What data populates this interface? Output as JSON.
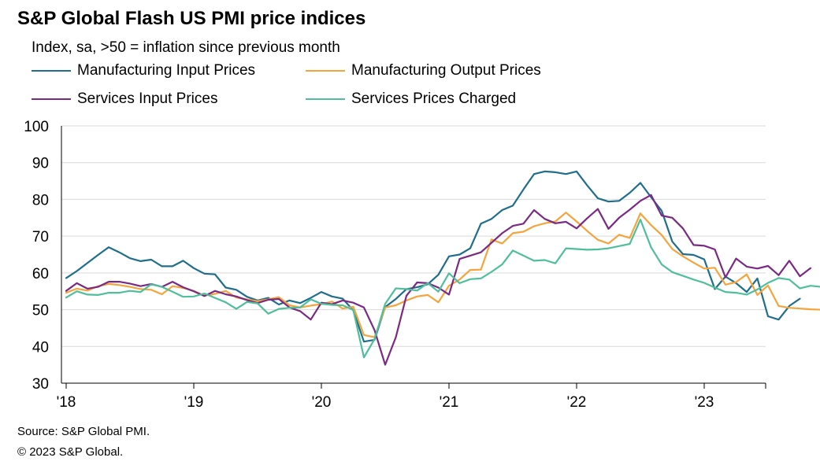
{
  "title": "S&P Global Flash US PMI price indices",
  "subtitle": "Index, sa, >50 = inflation since previous month",
  "source": "Source: S&P Global PMI.",
  "copyright": "© 2023 S&P Global.",
  "chart_data": {
    "type": "line",
    "title": "S&P Global Flash US PMI price indices",
    "ylabel": "Index, sa, >50 = inflation since previous month",
    "ylim": [
      30,
      100
    ],
    "yticks": [
      30,
      40,
      50,
      60,
      70,
      80,
      90,
      100
    ],
    "xticks": [
      {
        "label": "'18",
        "index": 0
      },
      {
        "label": "'19",
        "index": 12
      },
      {
        "label": "'20",
        "index": 24
      },
      {
        "label": "'21",
        "index": 36
      },
      {
        "label": "'22",
        "index": 48
      },
      {
        "label": "'23",
        "index": 60
      }
    ],
    "legend_position": "top",
    "grid": true,
    "series": [
      {
        "name": "Manufacturing Input Prices",
        "color": "#1f6e8c",
        "values": [
          58.6,
          60.5,
          62.7,
          64.9,
          67.0,
          65.6,
          64.0,
          63.2,
          63.6,
          61.8,
          61.8,
          63.3,
          61.3,
          59.8,
          59.6,
          56.0,
          55.4,
          53.5,
          52.5,
          53.2,
          51.4,
          52.5,
          51.8,
          53.2,
          54.8,
          53.6,
          53.0,
          49.8,
          41.3,
          41.8,
          50.7,
          52.9,
          55.6,
          56.1,
          56.9,
          59.5,
          64.5,
          65.0,
          66.7,
          73.4,
          74.7,
          77.1,
          78.3,
          82.7,
          86.9,
          87.6,
          87.4,
          86.9,
          87.6,
          83.8,
          80.3,
          79.4,
          79.6,
          81.8,
          84.5,
          80.6,
          76.9,
          68.5,
          65.1,
          64.9,
          63.7,
          55.6,
          59.0,
          57.2,
          54.8,
          58.5,
          48.2,
          47.3,
          51.0,
          53.0
        ]
      },
      {
        "name": "Manufacturing Output Prices",
        "color": "#f5a43c",
        "values": [
          54.6,
          55.7,
          55.2,
          56.4,
          57.0,
          56.7,
          56.2,
          55.6,
          55.4,
          54.2,
          56.4,
          55.9,
          55.1,
          53.8,
          54.3,
          55.1,
          53.3,
          52.8,
          52.3,
          52.8,
          53.4,
          51.2,
          50.6,
          51.1,
          51.5,
          52.2,
          50.3,
          50.8,
          43.1,
          42.5,
          50.6,
          51.2,
          52.5,
          53.6,
          54.0,
          52.0,
          56.5,
          58.2,
          60.8,
          60.9,
          69.1,
          68.0,
          70.8,
          71.2,
          72.7,
          73.5,
          74.0,
          76.4,
          74.0,
          71.4,
          69.0,
          68.0,
          70.4,
          69.5,
          76.2,
          73.0,
          70.3,
          66.5,
          64.5,
          62.8,
          61.2,
          61.4,
          56.8,
          57.5,
          59.6,
          54.0,
          56.6,
          51.0,
          50.5,
          50.3,
          50.1,
          50.0
        ]
      },
      {
        "name": "Services Input Prices",
        "color": "#7b2a84",
        "values": [
          55.1,
          57.2,
          55.7,
          56.2,
          57.6,
          57.6,
          57.1,
          56.4,
          57.0,
          56.2,
          57.6,
          56.1,
          55.0,
          53.7,
          55.1,
          54.2,
          53.6,
          52.6,
          51.8,
          52.7,
          52.9,
          50.6,
          49.6,
          47.3,
          51.9,
          51.5,
          52.5,
          51.9,
          50.6,
          44.4,
          35.0,
          42.5,
          53.8,
          57.4,
          57.2,
          56.0,
          54.1,
          63.8,
          64.7,
          65.6,
          68.2,
          70.8,
          72.8,
          73.4,
          77.1,
          74.7,
          73.5,
          73.9,
          72.1,
          74.9,
          77.4,
          72.0,
          75.0,
          77.2,
          79.6,
          81.2,
          75.6,
          75.0,
          72.1,
          67.6,
          67.4,
          66.4,
          58.8,
          63.9,
          61.7,
          61.2,
          61.9,
          59.4,
          63.3,
          59.1,
          61.3
        ]
      },
      {
        "name": "Services Prices Charged",
        "color": "#4fbf9b",
        "values": [
          53.3,
          55.0,
          54.1,
          54.0,
          54.6,
          54.6,
          55.1,
          54.8,
          56.9,
          56.2,
          54.9,
          53.5,
          53.6,
          54.4,
          53.2,
          52.0,
          50.2,
          52.1,
          51.7,
          48.9,
          50.2,
          50.5,
          50.6,
          52.8,
          51.6,
          51.3,
          51.2,
          49.9,
          37.0,
          42.0,
          51.6,
          55.8,
          55.6,
          55.2,
          57.2,
          54.9,
          59.9,
          57.2,
          58.3,
          58.5,
          60.3,
          62.3,
          66.1,
          64.7,
          63.3,
          63.5,
          62.6,
          66.7,
          66.5,
          66.3,
          66.4,
          66.7,
          67.3,
          67.9,
          74.5,
          67.0,
          62.3,
          60.2,
          59.2,
          58.2,
          57.3,
          56.0,
          54.8,
          54.6,
          54.1,
          55.5,
          57.3,
          58.6,
          58.2,
          55.8,
          56.5,
          56.2
        ]
      }
    ]
  }
}
